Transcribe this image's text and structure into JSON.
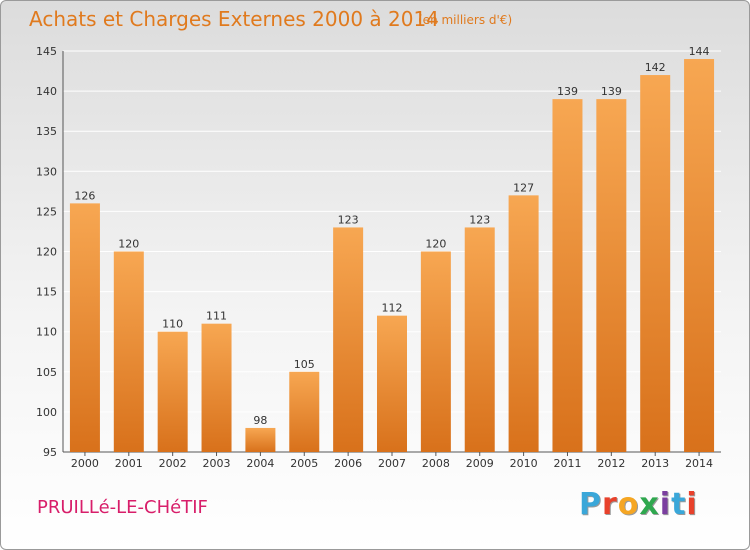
{
  "header": {
    "title": "Achats et Charges Externes 2000 à 2014",
    "subtitle": "(en milliers d'€)"
  },
  "footer": {
    "commune": "PRUILLé-LE-CHéTIF",
    "logo_text": "Proxiti",
    "logo_colors": [
      "#3aa7d9",
      "#e8412b",
      "#f5a623",
      "#2fa84f",
      "#7b3fa0",
      "#3aa7d9",
      "#e8412b"
    ]
  },
  "colors": {
    "bar_light": "#f7a752",
    "bar_dark": "#d8711b",
    "title": "#e07a1e",
    "commune": "#d81e6a",
    "gridline": "#ffffff"
  },
  "chart_data": {
    "type": "bar",
    "categories": [
      "2000",
      "2001",
      "2002",
      "2003",
      "2004",
      "2005",
      "2006",
      "2007",
      "2008",
      "2009",
      "2010",
      "2011",
      "2012",
      "2013",
      "2014"
    ],
    "values": [
      126,
      120,
      110,
      111,
      98,
      105,
      123,
      112,
      120,
      123,
      127,
      139,
      139,
      142,
      144
    ],
    "ylim": [
      95,
      145
    ],
    "yticks": [
      95,
      100,
      105,
      110,
      115,
      120,
      125,
      130,
      135,
      140,
      145
    ],
    "grid": true,
    "data_labels": true
  }
}
